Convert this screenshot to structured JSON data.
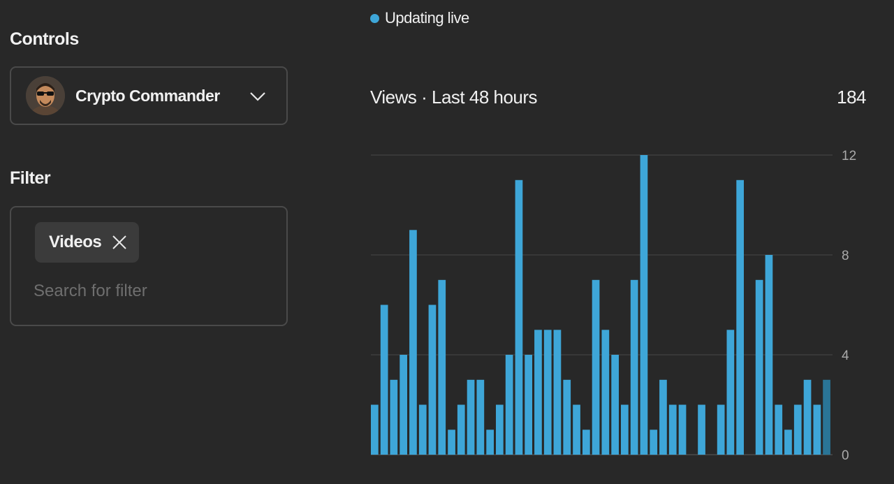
{
  "status": {
    "label": "Updating live",
    "dot_color": "#3ea6d8"
  },
  "controls": {
    "title": "Controls",
    "channel": {
      "name": "Crypto Commander",
      "avatar_icon": "channel-avatar-icon",
      "dropdown_icon": "chevron-down-icon"
    }
  },
  "filter": {
    "title": "Filter",
    "chips": [
      {
        "label": "Videos",
        "remove_icon": "close-icon"
      }
    ],
    "search_placeholder": "Search for filter"
  },
  "chart_data": {
    "type": "bar",
    "title": "Views · Last 48 hours",
    "total": "184",
    "ylabel": "",
    "xlabel": "",
    "ylim": [
      0,
      12
    ],
    "y_ticks": [
      0,
      4,
      8,
      12
    ],
    "grid": true,
    "bar_color": "#3ea6d8",
    "current_bar_color": "#2a7597",
    "values": [
      2,
      6,
      3,
      4,
      9,
      2,
      6,
      7,
      1,
      2,
      3,
      3,
      1,
      2,
      4,
      11,
      4,
      5,
      5,
      5,
      3,
      2,
      1,
      7,
      5,
      4,
      2,
      7,
      12,
      1,
      3,
      2,
      2,
      0,
      2,
      0,
      2,
      5,
      11,
      0,
      7,
      8,
      2,
      1,
      2,
      3,
      2,
      3
    ]
  }
}
